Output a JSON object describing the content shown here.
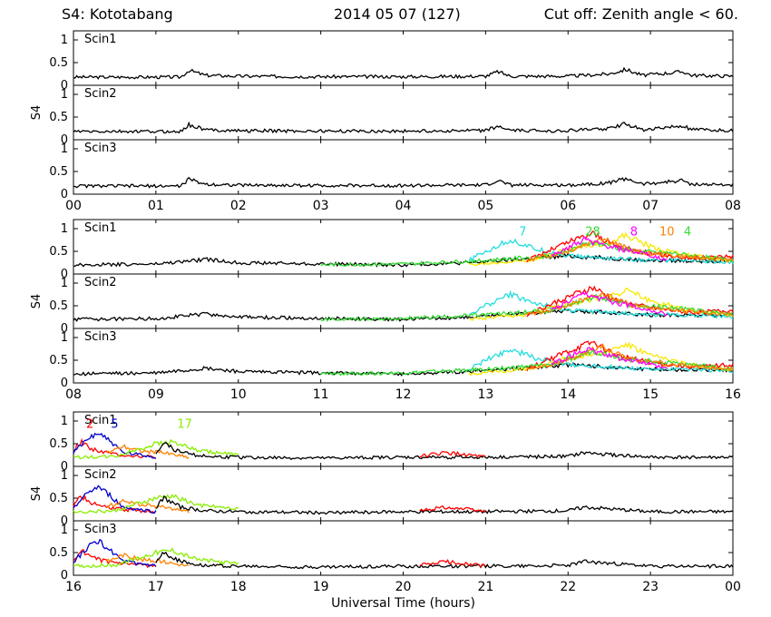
{
  "header": {
    "station": "S4: Kototabang",
    "date": "2014 05 07 (127)",
    "cutoff": "Cut off: Zenith angle < 60."
  },
  "chart_data": {
    "type": "line",
    "ylabel": "S4",
    "xlabel": "Universal Time (hours)",
    "ylim": [
      0,
      1.2
    ],
    "yticks": [
      "0",
      "0.5",
      "1"
    ],
    "panels": [
      "Scin1",
      "Scin2",
      "Scin3"
    ],
    "colors": {
      "black": "#000000",
      "red": "#ff0000",
      "blue": "#0000cc",
      "orange": "#ff8000",
      "green": "#33dd33",
      "lime": "#88ee00",
      "cyan": "#22dddd",
      "yellow": "#f8e800",
      "magenta": "#ff00ff"
    },
    "blocks": [
      {
        "xticks": [
          "00",
          "01",
          "02",
          "03",
          "04",
          "05",
          "06",
          "07",
          "08"
        ],
        "start_hour": 0,
        "prn_labels": [],
        "series": [
          {
            "color": "black",
            "x": [
              0,
              1.3,
              1.4,
              1.6,
              2,
              3,
              4,
              5,
              5.15,
              5.3,
              6,
              6.5,
              6.7,
              6.9,
              7.4,
              7.5,
              8
            ],
            "values": [
              0.18,
              0.18,
              0.33,
              0.22,
              0.2,
              0.19,
              0.19,
              0.2,
              0.3,
              0.2,
              0.2,
              0.25,
              0.35,
              0.22,
              0.3,
              0.22,
              0.2
            ]
          }
        ]
      },
      {
        "xticks": [
          "08",
          "09",
          "10",
          "11",
          "12",
          "13",
          "14",
          "15",
          "16"
        ],
        "start_hour": 8,
        "prn_labels": [
          {
            "text": "7",
            "color": "cyan",
            "x": 13.45,
            "y": 0.85
          },
          {
            "text": "28",
            "color": "green",
            "x": 14.3,
            "y": 0.85
          },
          {
            "text": "8",
            "color": "magenta",
            "x": 14.8,
            "y": 0.85
          },
          {
            "text": "10",
            "color": "orange",
            "x": 15.2,
            "y": 0.85
          },
          {
            "text": "4",
            "color": "green",
            "x": 15.45,
            "y": 0.85
          }
        ],
        "series": [
          {
            "color": "black",
            "x": [
              8,
              9,
              9.6,
              10,
              11,
              12,
              12.8,
              13.2,
              14,
              14.5,
              15,
              16
            ],
            "values": [
              0.2,
              0.22,
              0.32,
              0.25,
              0.22,
              0.2,
              0.25,
              0.3,
              0.4,
              0.35,
              0.3,
              0.28
            ]
          },
          {
            "color": "cyan",
            "x": [
              12.8,
              13,
              13.3,
              13.6,
              14,
              14.5,
              15,
              15.5,
              16
            ],
            "values": [
              0.3,
              0.5,
              0.75,
              0.55,
              0.4,
              0.35,
              0.3,
              0.3,
              0.25
            ]
          },
          {
            "color": "yellow",
            "x": [
              12.8,
              13.5,
              14,
              14.5,
              14.7,
              15,
              15.5,
              16
            ],
            "values": [
              0.2,
              0.3,
              0.55,
              0.7,
              0.85,
              0.6,
              0.4,
              0.3
            ]
          },
          {
            "color": "red",
            "x": [
              13.5,
              14,
              14.3,
              14.6,
              15,
              15.5,
              16
            ],
            "values": [
              0.3,
              0.7,
              0.9,
              0.6,
              0.45,
              0.35,
              0.4
            ]
          },
          {
            "color": "green",
            "x": [
              11,
              12,
              13,
              13.8,
              14.3,
              14.8,
              15.3,
              16
            ],
            "values": [
              0.2,
              0.22,
              0.3,
              0.4,
              0.7,
              0.5,
              0.45,
              0.3
            ]
          },
          {
            "color": "orange",
            "x": [
              13.5,
              14,
              14.4,
              14.8,
              15.3,
              16
            ],
            "values": [
              0.3,
              0.5,
              0.8,
              0.5,
              0.4,
              0.3
            ]
          },
          {
            "color": "magenta",
            "x": [
              13.8,
              14.2,
              14.5,
              14.9,
              15.2
            ],
            "values": [
              0.4,
              0.75,
              0.6,
              0.45,
              0.3
            ]
          }
        ]
      },
      {
        "xticks": [
          "16",
          "17",
          "18",
          "19",
          "20",
          "21",
          "22",
          "23",
          "00"
        ],
        "start_hour": 16,
        "prn_labels": [
          {
            "text": "2",
            "color": "red",
            "x": 16.2,
            "y": 0.85
          },
          {
            "text": "5",
            "color": "blue",
            "x": 16.5,
            "y": 0.85
          },
          {
            "text": "17",
            "color": "lime",
            "x": 17.35,
            "y": 0.85
          }
        ],
        "series": [
          {
            "color": "red",
            "x": [
              16,
              16.1,
              16.2,
              16.4,
              16.6,
              17
            ],
            "values": [
              0.35,
              0.55,
              0.4,
              0.3,
              0.25,
              0.2
            ]
          },
          {
            "color": "blue",
            "x": [
              16,
              16.2,
              16.3,
              16.45,
              16.6,
              17
            ],
            "values": [
              0.3,
              0.65,
              0.75,
              0.55,
              0.3,
              0.2
            ]
          },
          {
            "color": "orange",
            "x": [
              16.4,
              16.6,
              16.8,
              17.1,
              17.4
            ],
            "values": [
              0.3,
              0.45,
              0.35,
              0.3,
              0.2
            ]
          },
          {
            "color": "lime",
            "x": [
              16,
              16.5,
              17,
              17.2,
              17.5,
              18
            ],
            "values": [
              0.2,
              0.22,
              0.5,
              0.55,
              0.35,
              0.25
            ]
          },
          {
            "color": "black",
            "x": [
              17,
              17.1,
              17.3,
              17.6,
              18,
              19,
              20,
              21,
              22,
              22.2,
              23,
              24
            ],
            "values": [
              0.3,
              0.5,
              0.3,
              0.22,
              0.2,
              0.18,
              0.2,
              0.2,
              0.22,
              0.3,
              0.2,
              0.2
            ]
          },
          {
            "color": "red",
            "x": [
              20.2,
              20.5,
              20.8,
              21
            ],
            "values": [
              0.22,
              0.3,
              0.25,
              0.2
            ]
          }
        ]
      }
    ]
  }
}
